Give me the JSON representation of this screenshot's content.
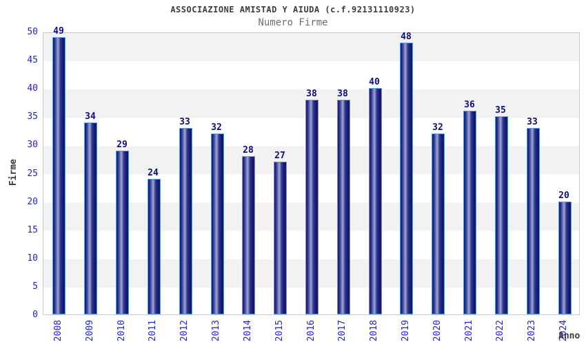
{
  "header": {
    "title": "ASSOCIAZIONE AMISTAD Y AIUDA (c.f.92131110923)",
    "subtitle": "Numero Firme"
  },
  "chart_data": {
    "type": "bar",
    "title": "ASSOCIAZIONE AMISTAD Y AIUDA (c.f.92131110923)",
    "subtitle": "Numero Firme",
    "xlabel": "Anno",
    "ylabel": "Firme",
    "categories": [
      "2008",
      "2009",
      "2010",
      "2011",
      "2012",
      "2013",
      "2014",
      "2015",
      "2016",
      "2017",
      "2018",
      "2019",
      "2020",
      "2021",
      "2022",
      "2023",
      "2024"
    ],
    "values": [
      49,
      34,
      29,
      24,
      33,
      32,
      28,
      27,
      38,
      38,
      40,
      48,
      32,
      36,
      35,
      33,
      20
    ],
    "ylim": [
      0,
      50
    ],
    "ytick_step": 5,
    "grid": "alternating-horizontal-bands",
    "legend": "none",
    "colors": {
      "bar_edge_dark": "#17176e",
      "bar_mid": "#2e3990",
      "bar_highlight": "#a0a6d3",
      "bar_border": "#5d9ae3",
      "tick_text": "#2323cc",
      "value_text": "#0d0d82",
      "band_gray": "#f2f2f2",
      "band_white": "#ffffff",
      "plot_border": "#c9c9c9",
      "title_text": "#3c3c3c",
      "subtitle_text": "#6e6e6e",
      "axis_title_text": "#3a3a3a"
    }
  }
}
